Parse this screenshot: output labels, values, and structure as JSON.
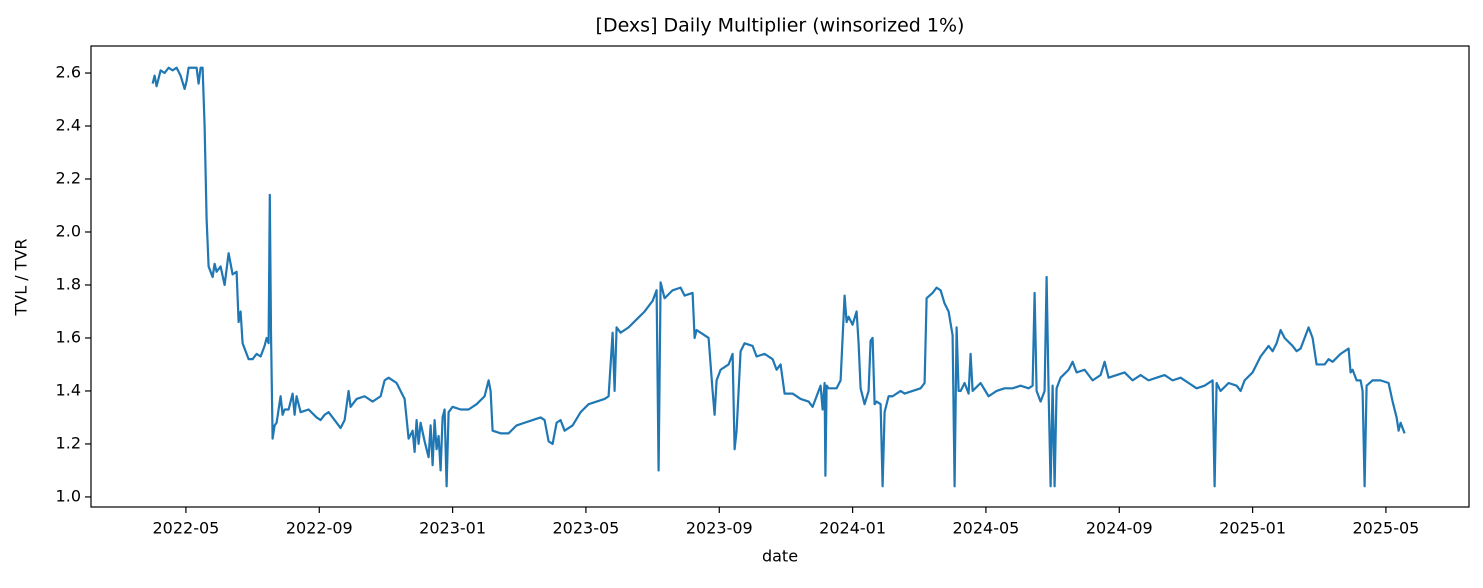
{
  "chart_data": {
    "type": "line",
    "title": "[Dexs] Daily Multiplier (winsorized 1%)",
    "x_label": "date",
    "y_label": "TVL / TVR",
    "color": "#1f77b4",
    "grid": false,
    "xlim": [
      2022.096,
      2025.541
    ],
    "ylim": [
      0.962,
      2.702
    ],
    "xticks": [
      {
        "value": 2022.3333,
        "label": "2022-05"
      },
      {
        "value": 2022.6667,
        "label": "2022-09"
      },
      {
        "value": 2023,
        "label": "2023-01"
      },
      {
        "value": 2023.3333,
        "label": "2023-05"
      },
      {
        "value": 2023.6667,
        "label": "2023-09"
      },
      {
        "value": 2024,
        "label": "2024-01"
      },
      {
        "value": 2024.3333,
        "label": "2024-05"
      },
      {
        "value": 2024.6667,
        "label": "2024-09"
      },
      {
        "value": 2025,
        "label": "2025-01"
      },
      {
        "value": 2025.3333,
        "label": "2025-05"
      }
    ],
    "yticks": [
      {
        "value": 1,
        "label": "1.0"
      },
      1.2,
      1.4,
      1.6,
      1.8,
      {
        "value": 2,
        "label": "2.0"
      },
      2.2,
      2.4,
      2.6
    ],
    "x": [
      2022.25,
      2022.255,
      2022.26,
      2022.27,
      2022.28,
      2022.29,
      2022.3,
      2022.31,
      2022.32,
      2022.33,
      2022.335,
      2022.34,
      2022.35,
      2022.36,
      2022.365,
      2022.37,
      2022.375,
      2022.38,
      2022.385,
      2022.39,
      2022.4,
      2022.405,
      2022.41,
      2022.42,
      2022.43,
      2022.44,
      2022.45,
      2022.46,
      2022.465,
      2022.47,
      2022.475,
      2022.48,
      2022.49,
      2022.5,
      2022.51,
      2022.52,
      2022.53,
      2022.535,
      2022.54,
      2022.543,
      2022.546,
      2022.55,
      2022.555,
      2022.56,
      2022.57,
      2022.575,
      2022.58,
      2022.59,
      2022.6,
      2022.605,
      2022.61,
      2022.62,
      2022.64,
      2022.66,
      2022.67,
      2022.68,
      2022.69,
      2022.7,
      2022.72,
      2022.73,
      2022.74,
      2022.745,
      2022.76,
      2022.78,
      2022.8,
      2022.82,
      2022.83,
      2022.84,
      2022.86,
      2022.87,
      2022.88,
      2022.89,
      2022.9,
      2022.905,
      2022.91,
      2022.915,
      2022.92,
      2022.93,
      2022.94,
      2022.945,
      2022.95,
      2022.955,
      2022.96,
      2022.965,
      2022.97,
      2022.975,
      2022.98,
      2022.985,
      2022.99,
      2023.0,
      2023.02,
      2023.04,
      2023.06,
      2023.08,
      2023.09,
      2023.095,
      2023.1,
      2023.12,
      2023.14,
      2023.16,
      2023.18,
      2023.2,
      2023.22,
      2023.23,
      2023.24,
      2023.25,
      2023.26,
      2023.27,
      2023.28,
      2023.3,
      2023.32,
      2023.34,
      2023.36,
      2023.38,
      2023.39,
      2023.4,
      2023.405,
      2023.41,
      2023.42,
      2023.44,
      2023.46,
      2023.48,
      2023.5,
      2023.51,
      2023.515,
      2023.52,
      2023.53,
      2023.55,
      2023.57,
      2023.58,
      2023.6,
      2023.605,
      2023.61,
      2023.63,
      2023.64,
      2023.65,
      2023.655,
      2023.66,
      2023.67,
      2023.69,
      2023.7,
      2023.705,
      2023.71,
      2023.72,
      2023.73,
      2023.75,
      2023.76,
      2023.78,
      2023.8,
      2023.81,
      2023.82,
      2023.83,
      2023.85,
      2023.87,
      2023.89,
      2023.9,
      2023.91,
      2023.92,
      2023.925,
      2023.93,
      2023.932,
      2023.935,
      2023.94,
      2023.96,
      2023.97,
      2023.975,
      2023.98,
      2023.985,
      2023.99,
      2024.0,
      2024.01,
      2024.015,
      2024.02,
      2024.03,
      2024.04,
      2024.045,
      2024.05,
      2024.055,
      2024.06,
      2024.07,
      2024.075,
      2024.08,
      2024.09,
      2024.1,
      2024.12,
      2024.13,
      2024.15,
      2024.17,
      2024.18,
      2024.185,
      2024.2,
      2024.21,
      2024.22,
      2024.23,
      2024.24,
      2024.25,
      2024.255,
      2024.26,
      2024.265,
      2024.27,
      2024.28,
      2024.29,
      2024.295,
      2024.3,
      2024.32,
      2024.34,
      2024.36,
      2024.38,
      2024.4,
      2024.42,
      2024.44,
      2024.45,
      2024.455,
      2024.46,
      2024.47,
      2024.48,
      2024.485,
      2024.49,
      2024.495,
      2024.5,
      2024.505,
      2024.51,
      2024.52,
      2024.54,
      2024.55,
      2024.56,
      2024.58,
      2024.6,
      2024.62,
      2024.63,
      2024.64,
      2024.66,
      2024.68,
      2024.7,
      2024.72,
      2024.74,
      2024.76,
      2024.78,
      2024.8,
      2024.82,
      2024.84,
      2024.86,
      2024.88,
      2024.9,
      2024.905,
      2024.91,
      2024.92,
      2024.94,
      2024.96,
      2024.97,
      2024.98,
      2025.0,
      2025.02,
      2025.04,
      2025.05,
      2025.06,
      2025.07,
      2025.08,
      2025.1,
      2025.11,
      2025.12,
      2025.14,
      2025.15,
      2025.16,
      2025.18,
      2025.19,
      2025.2,
      2025.22,
      2025.24,
      2025.245,
      2025.25,
      2025.26,
      2025.27,
      2025.275,
      2025.28,
      2025.285,
      2025.3,
      2025.32,
      2025.34,
      2025.35,
      2025.36,
      2025.365,
      2025.37,
      2025.375,
      2025.38
    ],
    "values": [
      2.56,
      2.59,
      2.55,
      2.61,
      2.6,
      2.62,
      2.61,
      2.62,
      2.59,
      2.54,
      2.57,
      2.62,
      2.62,
      2.62,
      2.56,
      2.62,
      2.62,
      2.4,
      2.05,
      1.87,
      1.83,
      1.88,
      1.85,
      1.87,
      1.8,
      1.92,
      1.84,
      1.85,
      1.66,
      1.7,
      1.58,
      1.56,
      1.52,
      1.52,
      1.54,
      1.53,
      1.57,
      1.6,
      1.58,
      2.14,
      1.62,
      1.22,
      1.27,
      1.28,
      1.38,
      1.31,
      1.33,
      1.33,
      1.39,
      1.31,
      1.38,
      1.32,
      1.33,
      1.3,
      1.29,
      1.31,
      1.32,
      1.3,
      1.26,
      1.29,
      1.4,
      1.34,
      1.37,
      1.38,
      1.36,
      1.38,
      1.44,
      1.45,
      1.43,
      1.4,
      1.37,
      1.22,
      1.25,
      1.17,
      1.29,
      1.2,
      1.28,
      1.21,
      1.15,
      1.27,
      1.12,
      1.29,
      1.18,
      1.23,
      1.1,
      1.3,
      1.33,
      1.04,
      1.32,
      1.34,
      1.33,
      1.33,
      1.35,
      1.38,
      1.44,
      1.4,
      1.25,
      1.24,
      1.24,
      1.27,
      1.28,
      1.29,
      1.3,
      1.29,
      1.21,
      1.2,
      1.28,
      1.29,
      1.25,
      1.27,
      1.32,
      1.35,
      1.36,
      1.37,
      1.38,
      1.62,
      1.4,
      1.64,
      1.62,
      1.64,
      1.67,
      1.7,
      1.74,
      1.78,
      1.1,
      1.81,
      1.75,
      1.78,
      1.79,
      1.76,
      1.77,
      1.6,
      1.63,
      1.61,
      1.6,
      1.4,
      1.31,
      1.44,
      1.48,
      1.5,
      1.54,
      1.18,
      1.25,
      1.55,
      1.58,
      1.57,
      1.53,
      1.54,
      1.52,
      1.48,
      1.5,
      1.39,
      1.39,
      1.37,
      1.36,
      1.34,
      1.38,
      1.42,
      1.33,
      1.43,
      1.08,
      1.42,
      1.41,
      1.41,
      1.44,
      1.6,
      1.76,
      1.66,
      1.68,
      1.65,
      1.7,
      1.58,
      1.41,
      1.35,
      1.4,
      1.59,
      1.6,
      1.35,
      1.36,
      1.35,
      1.04,
      1.32,
      1.38,
      1.38,
      1.4,
      1.39,
      1.4,
      1.41,
      1.43,
      1.75,
      1.77,
      1.79,
      1.78,
      1.73,
      1.7,
      1.61,
      1.04,
      1.64,
      1.4,
      1.4,
      1.43,
      1.39,
      1.54,
      1.4,
      1.43,
      1.38,
      1.4,
      1.41,
      1.41,
      1.42,
      1.41,
      1.42,
      1.77,
      1.4,
      1.36,
      1.4,
      1.83,
      1.4,
      1.04,
      1.42,
      1.04,
      1.41,
      1.45,
      1.48,
      1.51,
      1.47,
      1.48,
      1.44,
      1.46,
      1.51,
      1.45,
      1.46,
      1.47,
      1.44,
      1.46,
      1.44,
      1.45,
      1.46,
      1.44,
      1.45,
      1.43,
      1.41,
      1.42,
      1.44,
      1.04,
      1.43,
      1.4,
      1.43,
      1.42,
      1.4,
      1.44,
      1.47,
      1.53,
      1.57,
      1.55,
      1.58,
      1.63,
      1.6,
      1.57,
      1.55,
      1.56,
      1.64,
      1.6,
      1.5,
      1.5,
      1.52,
      1.51,
      1.54,
      1.56,
      1.47,
      1.48,
      1.44,
      1.44,
      1.4,
      1.04,
      1.42,
      1.44,
      1.44,
      1.43,
      1.36,
      1.3,
      1.25,
      1.28,
      1.26,
      1.24
    ]
  }
}
